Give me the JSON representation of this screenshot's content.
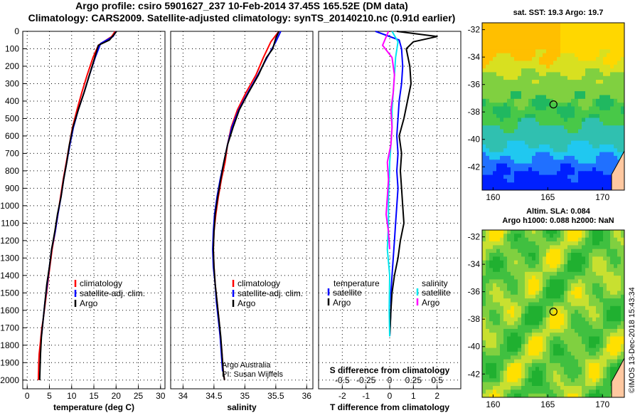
{
  "page": {
    "title_line1": "Argo profile: csiro 5901627_237 10-Feb-2014 37.45S 165.52E (DM data)",
    "title_line2": "Climatology: CARS2009. Satellite-adjusted climatology: synTS_20140210.nc (0.91d earlier)",
    "timestamp": "©IMOS 13-Dec-2018 15:43:34"
  },
  "colors": {
    "climatology": "#ff0000",
    "satellite": "#0000ff",
    "argo": "#000000",
    "sat_salinity": "#00e5ee",
    "argo_salinity": "#ff00ff"
  },
  "chart_data": [
    {
      "type": "line",
      "xlabel": "temperature (deg C)",
      "xlim": [
        -1,
        31
      ],
      "xticks": [
        0,
        5,
        10,
        15,
        20,
        25,
        30
      ],
      "ylim": [
        2050,
        0
      ],
      "yticks": [
        0,
        100,
        200,
        300,
        400,
        500,
        600,
        700,
        800,
        900,
        1000,
        1100,
        1200,
        1300,
        1400,
        1500,
        1600,
        1700,
        1800,
        1900,
        2000
      ],
      "legend": "lower-left",
      "legend_labels": {
        "climatology": "climatology",
        "satellite": "satellite-adj. clim.",
        "argo": "Argo"
      },
      "series": [
        {
          "name": "climatology",
          "color": "#ff0000",
          "x": [
            19.8,
            19.0,
            16.0,
            14.8,
            13.5,
            12.3,
            11.2,
            10.2,
            9.5,
            8.8,
            8.1,
            7.5,
            6.9,
            6.3,
            5.6,
            5.1,
            4.6,
            4.1,
            3.6,
            3.3,
            3.1,
            2.9,
            2.7,
            2.6,
            2.5
          ],
          "y": [
            0,
            30,
            80,
            150,
            250,
            350,
            450,
            550,
            650,
            750,
            850,
            950,
            1050,
            1150,
            1250,
            1350,
            1450,
            1550,
            1650,
            1700,
            1750,
            1800,
            1850,
            1900,
            2000
          ]
        },
        {
          "name": "satellite-adj. clim.",
          "color": "#0000ff",
          "x": [
            20.0,
            19.3,
            16.5,
            15.3,
            14.0,
            12.8,
            11.5,
            10.4,
            9.6,
            8.9,
            8.2,
            7.6,
            6.9,
            6.3,
            5.5,
            5.0,
            4.5,
            4.0,
            3.6,
            3.2
          ],
          "y": [
            0,
            30,
            70,
            150,
            250,
            350,
            450,
            550,
            650,
            750,
            850,
            950,
            1050,
            1150,
            1250,
            1350,
            1450,
            1550,
            1650,
            1750
          ]
        },
        {
          "name": "Argo",
          "color": "#000000",
          "x": [
            20.1,
            19.5,
            18.5,
            16.0,
            15.2,
            14.0,
            12.8,
            11.5,
            10.3,
            9.5,
            8.9,
            8.2,
            7.6,
            6.8,
            6.2,
            5.5,
            5.0,
            4.4,
            4.0,
            3.6,
            3.2,
            3.0,
            2.8
          ],
          "y": [
            0,
            20,
            50,
            80,
            150,
            250,
            350,
            450,
            550,
            650,
            750,
            850,
            950,
            1050,
            1150,
            1250,
            1350,
            1450,
            1550,
            1650,
            1750,
            1850,
            2000
          ]
        }
      ]
    },
    {
      "type": "line",
      "xlabel": "salinity",
      "xlim": [
        33.8,
        36.1
      ],
      "xticks": [
        34,
        34.5,
        35,
        35.5,
        36
      ],
      "ylim": [
        2050,
        0
      ],
      "legend": "lower-right",
      "legend_labels": {
        "climatology": "climatology",
        "satellite": "satellite-adj. clim.",
        "argo": "Argo"
      },
      "annotation": [
        "Argo Australia",
        "PI: Susan Wijffels"
      ],
      "series": [
        {
          "name": "climatology",
          "color": "#ff0000",
          "x": [
            35.55,
            35.42,
            35.3,
            35.18,
            35.02,
            34.88,
            34.78,
            34.72,
            34.68,
            34.62,
            34.57,
            34.53,
            34.5,
            34.49,
            34.5,
            34.52,
            34.55,
            34.58,
            34.6,
            34.62,
            34.63,
            34.65,
            34.67
          ],
          "y": [
            0,
            60,
            150,
            250,
            350,
            450,
            550,
            650,
            750,
            850,
            950,
            1050,
            1150,
            1250,
            1350,
            1450,
            1550,
            1650,
            1750,
            1800,
            1850,
            1950,
            2000
          ]
        },
        {
          "name": "satellite-adj. clim.",
          "color": "#0000ff",
          "x": [
            35.58,
            35.5,
            35.36,
            35.21,
            35.05,
            34.9,
            34.79,
            34.72,
            34.66,
            34.6,
            34.55,
            34.51,
            34.49,
            34.48,
            34.49,
            34.52,
            34.54,
            34.57,
            34.6,
            34.62,
            34.64
          ],
          "y": [
            0,
            60,
            150,
            250,
            350,
            450,
            550,
            650,
            750,
            850,
            950,
            1050,
            1150,
            1250,
            1350,
            1450,
            1550,
            1650,
            1750,
            1850,
            1950
          ]
        },
        {
          "name": "Argo",
          "color": "#000000",
          "x": [
            35.55,
            35.5,
            35.45,
            35.35,
            35.22,
            35.06,
            34.91,
            34.81,
            34.72,
            34.66,
            34.61,
            34.56,
            34.52,
            34.5,
            34.49,
            34.5,
            34.52,
            34.55,
            34.58,
            34.61,
            34.63,
            34.65,
            34.67
          ],
          "y": [
            0,
            40,
            100,
            150,
            250,
            350,
            450,
            550,
            650,
            750,
            850,
            950,
            1050,
            1150,
            1250,
            1350,
            1450,
            1550,
            1650,
            1750,
            1850,
            1950,
            2000
          ]
        }
      ]
    },
    {
      "type": "line",
      "xlabel": "T difference from climatology",
      "xlabel_top": "S difference from climatology",
      "xlim": [
        -3,
        3
      ],
      "xticks": [
        -2,
        -1,
        0,
        1,
        2
      ],
      "xticks_top": [
        -0.5,
        -0.25,
        0,
        0.25,
        0.5
      ],
      "xtick_labels_top": [
        "-0.5",
        "-0.25",
        "0",
        "0.25",
        "0.5"
      ],
      "ylim": [
        2050,
        0
      ],
      "legend": "lower",
      "legend_labels": {
        "temperature": "temperature",
        "salinity": "salinity",
        "satellite": "satellite",
        "argo": "Argo"
      },
      "series": [
        {
          "name": "temperature satellite",
          "color": "#0000ff",
          "x": [
            -0.6,
            0.4,
            0.5,
            0.55,
            0.5,
            0.4,
            0.35,
            0.3,
            0.35,
            0.3,
            0.35,
            0.3,
            0.25,
            0.2,
            0.15,
            0.1,
            0.05,
            0.05,
            0.0
          ],
          "y": [
            0,
            50,
            100,
            200,
            300,
            400,
            500,
            600,
            700,
            800,
            900,
            1000,
            1100,
            1200,
            1300,
            1400,
            1500,
            1600,
            1750
          ]
        },
        {
          "name": "temperature Argo",
          "color": "#000000",
          "x": [
            0.3,
            2.0,
            1.0,
            0.7,
            0.85,
            0.9,
            0.75,
            0.6,
            0.4,
            0.5,
            0.45,
            0.5,
            0.55,
            0.6,
            0.45,
            0.35,
            0.2,
            0.1,
            0.05,
            0.02,
            0.0
          ],
          "y": [
            0,
            30,
            60,
            100,
            200,
            300,
            400,
            500,
            600,
            700,
            800,
            900,
            1000,
            1100,
            1200,
            1300,
            1400,
            1500,
            1600,
            1700,
            1750
          ]
        },
        {
          "name": "salinity satellite",
          "color": "#00e5ee",
          "x": [
            0.1,
            0.35,
            0.25,
            0.2,
            0.15,
            0.1,
            0.1,
            0.05,
            0.0,
            -0.02,
            -0.05,
            -0.05,
            -0.1,
            0.0,
            -0.02,
            0.0
          ],
          "y": [
            0,
            60,
            150,
            250,
            350,
            450,
            550,
            650,
            750,
            850,
            950,
            1100,
            1250,
            1400,
            1600,
            1750
          ]
        },
        {
          "name": "salinity Argo",
          "color": "#ff00ff",
          "x": [
            -0.05,
            -0.3,
            0.1,
            0.2,
            0.15,
            0.05,
            0.1,
            0.05,
            -0.1,
            -0.05,
            -0.1,
            -0.15,
            -0.05,
            0.0
          ],
          "y": [
            0,
            80,
            150,
            250,
            350,
            450,
            550,
            650,
            750,
            850,
            950,
            1050,
            1150,
            1250
          ]
        }
      ]
    }
  ],
  "maps": {
    "sst": {
      "title": "sat. SST: 19.3 Argo: 19.7",
      "lon_ticks": [
        "160",
        "165",
        "170"
      ],
      "lat_ticks": [
        "-32",
        "-34",
        "-36",
        "-38",
        "-40",
        "-42"
      ],
      "marker_lon": 165.52,
      "marker_lat": -37.45
    },
    "sla": {
      "title_line1": "Altim. SLA: 0.084",
      "title_line2": "Argo h1000: 0.088 h2000: NaN",
      "lon_ticks": [
        "160",
        "165",
        "170"
      ],
      "lat_ticks": [
        "-32",
        "-34",
        "-36",
        "-38",
        "-40",
        "-42"
      ],
      "marker_lon": 165.52,
      "marker_lat": -37.45
    }
  }
}
